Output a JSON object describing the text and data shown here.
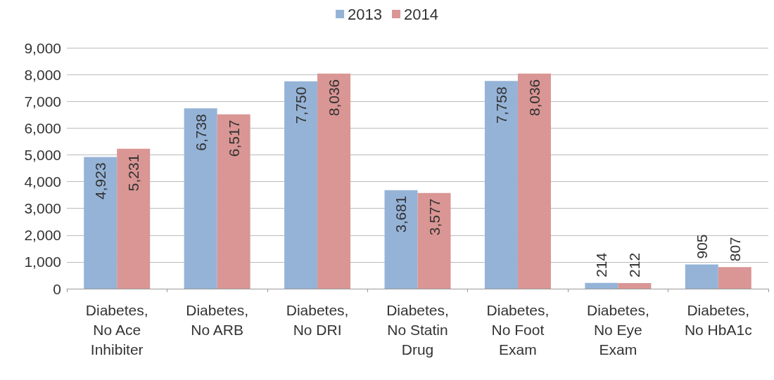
{
  "chart_data": {
    "type": "bar",
    "categories": [
      "Diabetes,\nNo Ace\nInhibiter",
      "Diabetes,\nNo ARB",
      "Diabetes,\nNo DRI",
      "Diabetes,\nNo Statin\nDrug",
      "Diabetes,\nNo Foot\nExam",
      "Diabetes,\nNo Eye\nExam",
      "Diabetes,\nNo HbA1c"
    ],
    "series": [
      {
        "name": "2013",
        "color": "#95b3d7",
        "values": [
          4923,
          6738,
          7750,
          3681,
          7758,
          214,
          905
        ],
        "value_labels": [
          "4,923",
          "6,738",
          "7,750",
          "3,681",
          "7,758",
          "214",
          "905"
        ]
      },
      {
        "name": "2014",
        "color": "#d99694",
        "values": [
          5231,
          6517,
          8036,
          3577,
          8036,
          212,
          807
        ],
        "value_labels": [
          "5,231",
          "6,517",
          "8,036",
          "3,577",
          "8,036",
          "212",
          "807"
        ]
      }
    ],
    "ylim": [
      0,
      9000
    ],
    "yticks": [
      0,
      {
        "value": 1000,
        "label": "1,000"
      },
      {
        "value": 2000,
        "label": "2,000"
      },
      {
        "value": 3000,
        "label": "3,000"
      },
      {
        "value": 4000,
        "label": "4,000"
      },
      {
        "value": 5000,
        "label": "5,000"
      },
      {
        "value": 6000,
        "label": "6,000"
      },
      {
        "value": 7000,
        "label": "7,000"
      },
      {
        "value": 8000,
        "label": "8,000"
      },
      {
        "value": 9000,
        "label": "9,000"
      }
    ],
    "grid": "y",
    "legend": "top"
  }
}
